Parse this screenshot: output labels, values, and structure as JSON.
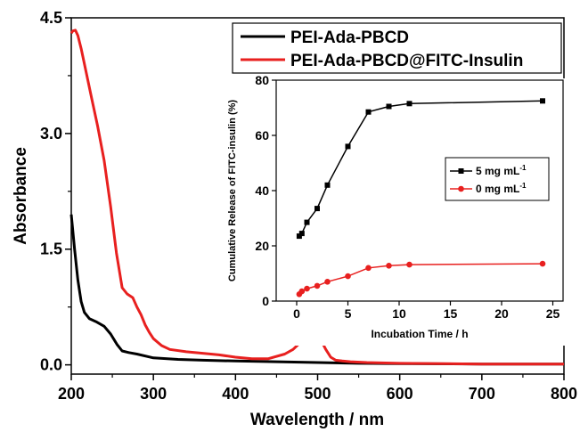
{
  "chart_data": [
    {
      "type": "line",
      "xlabel": "Wavelength / nm",
      "ylabel": "Absorbance",
      "xlim": [
        200,
        800
      ],
      "ylim": [
        -0.12,
        4.5
      ],
      "xticks": [
        "200",
        "300",
        "400",
        "500",
        "600",
        "700",
        "800"
      ],
      "yticks": [
        "0.0",
        "1.5",
        "3.0",
        "4.5"
      ],
      "legend_position": "top-right",
      "series": [
        {
          "name": "PEI-Ada-PBCD",
          "color": "#000000",
          "x": [
            200,
            204,
            208,
            212,
            216,
            222,
            230,
            240,
            248,
            256,
            262,
            270,
            280,
            300,
            330,
            360,
            400,
            450,
            500,
            550,
            600,
            700,
            800
          ],
          "y": [
            1.95,
            1.5,
            1.1,
            0.82,
            0.68,
            0.6,
            0.56,
            0.5,
            0.4,
            0.26,
            0.18,
            0.16,
            0.14,
            0.09,
            0.07,
            0.06,
            0.05,
            0.04,
            0.03,
            0.02,
            0.015,
            0.01,
            0.01
          ]
        },
        {
          "name": "PEI-Ada-PBCD@FITC-Insulin",
          "color": "#e8201f",
          "x": [
            200,
            202,
            205,
            208,
            212,
            218,
            225,
            232,
            240,
            248,
            255,
            262,
            268,
            275,
            280,
            285,
            290,
            295,
            300,
            310,
            320,
            340,
            360,
            380,
            400,
            420,
            440,
            460,
            470,
            480,
            488,
            494,
            500,
            505,
            510,
            516,
            522,
            530,
            540,
            560,
            600,
            700,
            800
          ],
          "y": [
            4.3,
            4.33,
            4.34,
            4.27,
            4.1,
            3.8,
            3.45,
            3.1,
            2.65,
            2.05,
            1.45,
            1.0,
            0.92,
            0.87,
            0.75,
            0.65,
            0.52,
            0.42,
            0.34,
            0.25,
            0.2,
            0.17,
            0.15,
            0.13,
            0.1,
            0.08,
            0.08,
            0.14,
            0.2,
            0.3,
            0.38,
            0.42,
            0.39,
            0.3,
            0.2,
            0.1,
            0.06,
            0.05,
            0.04,
            0.03,
            0.02,
            0.01,
            0.01
          ]
        }
      ]
    },
    {
      "type": "line",
      "xlabel": "Incubation Time / h",
      "ylabel": "Cumulative Release of FITC-insulin (%)",
      "xlim": [
        -2,
        26
      ],
      "ylim": [
        0,
        80
      ],
      "xticks": [
        "0",
        "5",
        "10",
        "15",
        "20",
        "25"
      ],
      "yticks": [
        "0",
        "20",
        "40",
        "60",
        "80"
      ],
      "legend_position": "right",
      "series": [
        {
          "name": "5 mg mL",
          "name_superscript": "-1",
          "color": "#000000",
          "marker": "square",
          "x": [
            0.25,
            0.5,
            1,
            2,
            3,
            5,
            7,
            9,
            11,
            24
          ],
          "y": [
            23.5,
            24.5,
            28.5,
            33.5,
            42,
            56,
            68.5,
            70.5,
            71.5,
            72.5
          ]
        },
        {
          "name": "0 mg mL",
          "name_superscript": "-1",
          "color": "#e8201f",
          "marker": "circle",
          "x": [
            0.25,
            0.5,
            1,
            2,
            3,
            5,
            7,
            9,
            11,
            24
          ],
          "y": [
            2.5,
            3.5,
            4.5,
            5.5,
            7,
            9,
            12,
            12.8,
            13.2,
            13.5
          ]
        }
      ]
    }
  ]
}
